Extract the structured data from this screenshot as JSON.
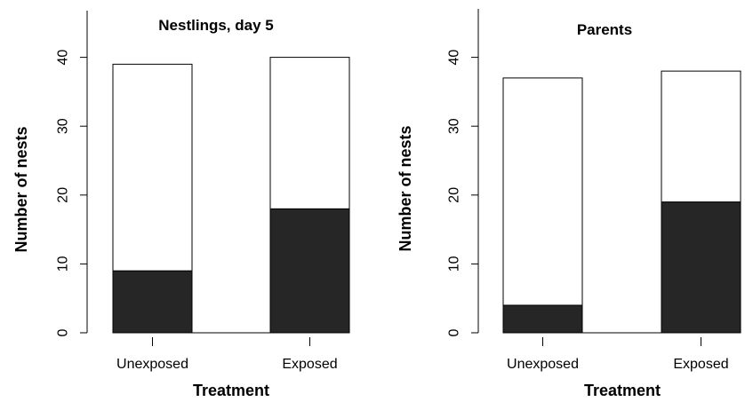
{
  "chart_data": [
    {
      "type": "bar",
      "stacked": true,
      "title": "Nestlings, day 5",
      "xlabel": "Treatment",
      "ylabel": "Number of nests",
      "categories": [
        "Unexposed",
        "Exposed"
      ],
      "series": [
        {
          "values": [
            9,
            18
          ],
          "color": "#262626"
        },
        {
          "values": [
            30,
            22
          ],
          "color": "#ffffff"
        }
      ],
      "ylim": [
        0,
        45
      ],
      "yticks": [
        "0",
        "10",
        "20",
        "30",
        "40"
      ],
      "grid": false
    },
    {
      "type": "bar",
      "stacked": true,
      "title": "Parents",
      "xlabel": "Treatment",
      "ylabel": "Number of nests",
      "categories": [
        "Unexposed",
        "Exposed"
      ],
      "series": [
        {
          "values": [
            4,
            19
          ],
          "color": "#262626"
        },
        {
          "values": [
            33,
            19
          ],
          "color": "#ffffff"
        }
      ],
      "ylim": [
        0,
        45
      ],
      "yticks": [
        "0",
        "10",
        "20",
        "30",
        "40"
      ],
      "grid": false
    }
  ]
}
